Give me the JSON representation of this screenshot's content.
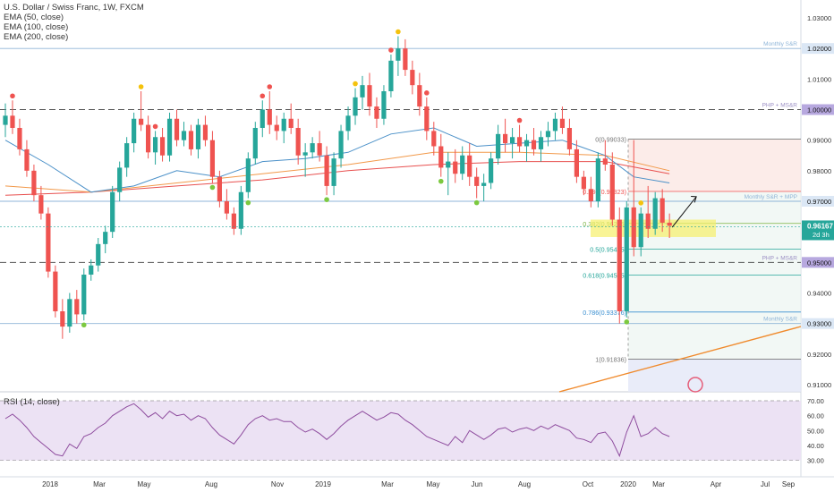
{
  "legend": {
    "title": "U.S. Dollar / Swiss Franc, 1W, FXCM",
    "ema50": "EMA (50, close)",
    "ema100": "EMA (100, close)",
    "ema200": "EMA (200, close)"
  },
  "rsi_title": "RSI (14, close)",
  "colors": {
    "up": "#26a69a",
    "down": "#ef5350",
    "ema50": "#4a90c8",
    "ema100": "#f2994a",
    "ema200": "#e8504f",
    "rsi": "#8e4c9e",
    "rsi_band": "#ece2f4",
    "dot_red": "#ef5350",
    "dot_green": "#7cc940",
    "dot_yellow": "#f4c20d",
    "trendline": "#f08a2c",
    "price_tag": "#26a69a"
  },
  "chart_data": [
    {
      "type": "candlestick",
      "symbol": "USDCHF",
      "timeframe": "1W",
      "ylim": [
        0.905,
        1.035
      ],
      "price_axis": [
        "1.03000",
        "1.02000",
        "1.01000",
        "1.00000",
        "0.99000",
        "0.98000",
        "0.97000",
        "0.96000",
        "0.95000",
        "0.94000",
        "0.93000",
        "0.92000",
        "0.91000"
      ],
      "time_axis": [
        "2018",
        "Mar",
        "May",
        "Aug",
        "Nov",
        "2019",
        "Mar",
        "May",
        "Jun",
        "Aug",
        "Oct",
        "2020",
        "Mar",
        "Apr",
        "Jul",
        "Sep"
      ],
      "last_price": "0.96167",
      "countdown": "2d 3h",
      "tags": [
        {
          "value": "1.02000",
          "style": "blue"
        },
        {
          "value": "1.00000",
          "style": "purple"
        },
        {
          "value": "0.97000",
          "style": "blue"
        },
        {
          "value": "0.95000",
          "style": "purple"
        },
        {
          "value": "0.93000",
          "style": "blue"
        }
      ],
      "levels": [
        {
          "price": 1.02,
          "label": "Monthly S&R",
          "style": "blue"
        },
        {
          "price": 1.0,
          "label": "PHP + MS&R",
          "style": "purple-dashed"
        },
        {
          "price": 0.97,
          "label": "Monthly S&R + MPP",
          "style": "blue"
        },
        {
          "price": 0.95,
          "label": "PHP + MS&R",
          "style": "purple-dashed"
        },
        {
          "price": 0.93,
          "label": "Monthly S&R",
          "style": "blue"
        }
      ],
      "fibonacci": [
        {
          "ratio": 0,
          "label": "0(0.99033)",
          "price": 0.99033
        },
        {
          "ratio": 0.236,
          "label": "0.236(0.97323)",
          "price": 0.97323
        },
        {
          "ratio": 0.382,
          "label": "0.382(0.96275)",
          "price": 0.96275
        },
        {
          "ratio": 0.5,
          "label": "0.5(0.95435)",
          "price": 0.95435
        },
        {
          "ratio": 0.618,
          "label": "0.618(0.94585)",
          "price": 0.94585
        },
        {
          "ratio": 0.786,
          "label": "0.786(0.93376)",
          "price": 0.93376
        },
        {
          "ratio": 1,
          "label": "1(0.91836)",
          "price": 0.91836
        }
      ],
      "candles": [
        [
          0.995,
          1.002,
          0.991,
          0.998
        ],
        [
          0.998,
          1.003,
          0.992,
          0.994
        ],
        [
          0.994,
          0.997,
          0.985,
          0.987
        ],
        [
          0.987,
          0.99,
          0.978,
          0.98
        ],
        [
          0.98,
          0.982,
          0.97,
          0.972
        ],
        [
          0.972,
          0.975,
          0.964,
          0.966
        ],
        [
          0.966,
          0.968,
          0.945,
          0.947
        ],
        [
          0.947,
          0.949,
          0.932,
          0.934
        ],
        [
          0.934,
          0.938,
          0.925,
          0.929
        ],
        [
          0.929,
          0.94,
          0.927,
          0.938
        ],
        [
          0.938,
          0.941,
          0.93,
          0.933
        ],
        [
          0.933,
          0.948,
          0.931,
          0.946
        ],
        [
          0.946,
          0.951,
          0.944,
          0.949
        ],
        [
          0.949,
          0.958,
          0.947,
          0.956
        ],
        [
          0.956,
          0.962,
          0.953,
          0.96
        ],
        [
          0.96,
          0.975,
          0.958,
          0.973
        ],
        [
          0.973,
          0.983,
          0.97,
          0.981
        ],
        [
          0.981,
          0.991,
          0.978,
          0.989
        ],
        [
          0.989,
          0.999,
          0.986,
          0.997
        ],
        [
          0.997,
          1.006,
          0.993,
          0.995
        ],
        [
          0.995,
          0.998,
          0.984,
          0.986
        ],
        [
          0.986,
          0.993,
          0.982,
          0.991
        ],
        [
          0.991,
          0.994,
          0.983,
          0.985
        ],
        [
          0.985,
          0.999,
          0.983,
          0.997
        ],
        [
          0.997,
          1.0,
          0.988,
          0.99
        ],
        [
          0.99,
          0.996,
          0.988,
          0.993
        ],
        [
          0.993,
          0.995,
          0.985,
          0.987
        ],
        [
          0.987,
          0.997,
          0.984,
          0.995
        ],
        [
          0.995,
          0.998,
          0.988,
          0.99
        ],
        [
          0.99,
          0.993,
          0.976,
          0.978
        ],
        [
          0.978,
          0.98,
          0.968,
          0.97
        ],
        [
          0.97,
          0.974,
          0.964,
          0.966
        ],
        [
          0.966,
          0.968,
          0.959,
          0.961
        ],
        [
          0.961,
          0.975,
          0.959,
          0.973
        ],
        [
          0.973,
          0.986,
          0.971,
          0.984
        ],
        [
          0.984,
          0.996,
          0.982,
          0.994
        ],
        [
          0.994,
          1.003,
          0.991,
          1.0
        ],
        [
          1.0,
          1.006,
          0.992,
          0.995
        ],
        [
          0.995,
          0.998,
          0.99,
          0.993
        ],
        [
          0.993,
          0.999,
          0.989,
          0.997
        ],
        [
          0.997,
          1.002,
          0.992,
          0.994
        ],
        [
          0.994,
          0.997,
          0.982,
          0.985
        ],
        [
          0.985,
          0.989,
          0.978,
          0.986
        ],
        [
          0.986,
          0.991,
          0.984,
          0.989
        ],
        [
          0.989,
          0.993,
          0.983,
          0.985
        ],
        [
          0.985,
          0.988,
          0.972,
          0.975
        ],
        [
          0.975,
          0.986,
          0.972,
          0.984
        ],
        [
          0.984,
          0.995,
          0.981,
          0.993
        ],
        [
          0.993,
          1.001,
          0.99,
          0.998
        ],
        [
          0.998,
          1.007,
          0.995,
          1.004
        ],
        [
          1.004,
          1.011,
          1.0,
          1.008
        ],
        [
          1.008,
          1.012,
          0.998,
          1.001
        ],
        [
          1.001,
          1.004,
          0.994,
          0.997
        ],
        [
          0.997,
          1.008,
          0.995,
          1.006
        ],
        [
          1.006,
          1.018,
          1.004,
          1.016
        ],
        [
          1.016,
          1.024,
          1.011,
          1.02
        ],
        [
          1.02,
          1.023,
          1.011,
          1.013
        ],
        [
          1.013,
          1.016,
          1.005,
          1.008
        ],
        [
          1.008,
          1.012,
          0.998,
          1.001
        ],
        [
          1.001,
          1.004,
          0.99,
          0.993
        ],
        [
          0.993,
          0.996,
          0.985,
          0.988
        ],
        [
          0.988,
          0.992,
          0.978,
          0.981
        ],
        [
          0.981,
          0.986,
          0.972,
          0.983
        ],
        [
          0.983,
          0.987,
          0.976,
          0.979
        ],
        [
          0.979,
          0.988,
          0.977,
          0.985
        ],
        [
          0.985,
          0.989,
          0.975,
          0.978
        ],
        [
          0.978,
          0.981,
          0.971,
          0.975
        ],
        [
          0.975,
          0.979,
          0.97,
          0.976
        ],
        [
          0.976,
          0.986,
          0.974,
          0.984
        ],
        [
          0.984,
          0.995,
          0.982,
          0.992
        ],
        [
          0.992,
          0.997,
          0.986,
          0.989
        ],
        [
          0.989,
          0.994,
          0.984,
          0.991
        ],
        [
          0.991,
          0.995,
          0.986,
          0.988
        ],
        [
          0.988,
          0.992,
          0.983,
          0.99
        ],
        [
          0.99,
          0.994,
          0.985,
          0.987
        ],
        [
          0.987,
          0.993,
          0.983,
          0.991
        ],
        [
          0.991,
          0.996,
          0.988,
          0.993
        ],
        [
          0.993,
          0.999,
          0.99,
          0.997
        ],
        [
          0.997,
          1.001,
          0.992,
          0.994
        ],
        [
          0.994,
          0.997,
          0.985,
          0.987
        ],
        [
          0.987,
          0.99,
          0.976,
          0.978
        ],
        [
          0.978,
          0.98,
          0.972,
          0.974
        ],
        [
          0.974,
          0.978,
          0.968,
          0.97
        ],
        [
          0.97,
          0.986,
          0.968,
          0.984
        ],
        [
          0.984,
          0.99,
          0.98,
          0.982
        ],
        [
          0.982,
          0.986,
          0.962,
          0.964
        ],
        [
          0.964,
          0.968,
          0.93,
          0.934
        ],
        [
          0.934,
          0.97,
          0.932,
          0.968
        ],
        [
          0.968,
          0.99,
          0.952,
          0.955
        ],
        [
          0.955,
          0.968,
          0.952,
          0.966
        ],
        [
          0.966,
          0.975,
          0.958,
          0.961
        ],
        [
          0.961,
          0.973,
          0.959,
          0.971
        ],
        [
          0.971,
          0.974,
          0.96,
          0.963
        ],
        [
          0.963,
          0.966,
          0.958,
          0.962
        ]
      ],
      "ema50": [
        [
          0,
          0.99
        ],
        [
          6,
          0.982
        ],
        [
          12,
          0.973
        ],
        [
          18,
          0.975
        ],
        [
          24,
          0.98
        ],
        [
          30,
          0.978
        ],
        [
          36,
          0.983
        ],
        [
          42,
          0.984
        ],
        [
          48,
          0.986
        ],
        [
          54,
          0.992
        ],
        [
          60,
          0.994
        ],
        [
          66,
          0.988
        ],
        [
          72,
          0.989
        ],
        [
          78,
          0.99
        ],
        [
          84,
          0.985
        ],
        [
          88,
          0.978
        ],
        [
          93,
          0.976
        ]
      ],
      "ema100": [
        [
          0,
          0.975
        ],
        [
          12,
          0.973
        ],
        [
          24,
          0.976
        ],
        [
          36,
          0.979
        ],
        [
          48,
          0.982
        ],
        [
          60,
          0.986
        ],
        [
          72,
          0.986
        ],
        [
          84,
          0.985
        ],
        [
          93,
          0.98
        ]
      ],
      "ema200": [
        [
          0,
          0.972
        ],
        [
          12,
          0.973
        ],
        [
          24,
          0.975
        ],
        [
          36,
          0.977
        ],
        [
          48,
          0.98
        ],
        [
          60,
          0.982
        ],
        [
          72,
          0.983
        ],
        [
          84,
          0.983
        ],
        [
          93,
          0.979
        ]
      ],
      "rsi": {
        "ylim": [
          25,
          70
        ],
        "ticks": [
          "70.00",
          "60.00",
          "50.00",
          "40.00",
          "30.00"
        ],
        "values": [
          58,
          61,
          57,
          52,
          46,
          42,
          38,
          34,
          33,
          41,
          38,
          46,
          48,
          52,
          55,
          60,
          63,
          66,
          68,
          64,
          59,
          62,
          58,
          63,
          60,
          61,
          57,
          60,
          58,
          52,
          47,
          44,
          41,
          47,
          54,
          58,
          60,
          57,
          58,
          56,
          56,
          52,
          49,
          51,
          48,
          44,
          48,
          53,
          57,
          60,
          63,
          60,
          57,
          59,
          62,
          61,
          57,
          54,
          50,
          46,
          44,
          42,
          40,
          46,
          42,
          50,
          47,
          44,
          47,
          51,
          52,
          49,
          51,
          52,
          50,
          53,
          51,
          54,
          52,
          50,
          45,
          44,
          42,
          48,
          49,
          43,
          33,
          49,
          60,
          46,
          48,
          52,
          48,
          46
        ]
      }
    }
  ]
}
